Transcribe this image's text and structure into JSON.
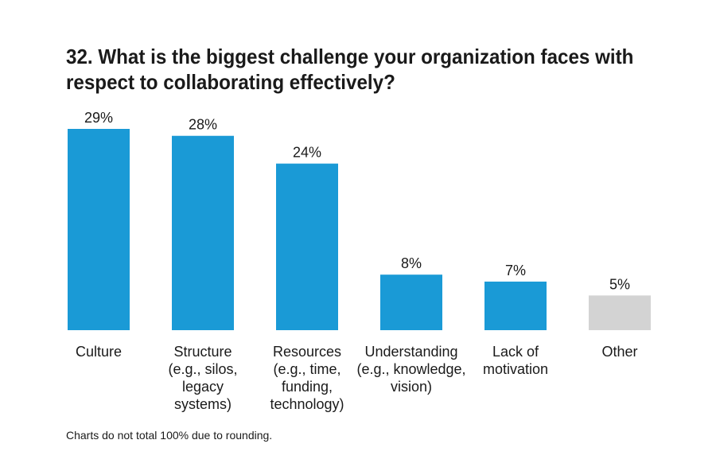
{
  "chart_data": {
    "type": "bar",
    "title": "32. What is the biggest challenge your organization faces with respect to collaborating effectively?",
    "categories": [
      [
        "Culture"
      ],
      [
        "Structure",
        "(e.g., silos,",
        "legacy",
        "systems)"
      ],
      [
        "Resources",
        "(e.g., time,",
        "funding,",
        "technology)"
      ],
      [
        "Understanding",
        "(e.g., knowledge,",
        "vision)"
      ],
      [
        "Lack of",
        "motivation"
      ],
      [
        "Other"
      ]
    ],
    "values": [
      29,
      28,
      24,
      8,
      7,
      5
    ],
    "value_labels": [
      "29%",
      "28%",
      "24%",
      "8%",
      "7%",
      "5%"
    ],
    "colors": [
      "#1a9ad6",
      "#1a9ad6",
      "#1a9ad6",
      "#1a9ad6",
      "#1a9ad6",
      "#d3d3d3"
    ],
    "ylim": [
      0,
      29
    ],
    "grid": false,
    "legend": "none",
    "footnote": "Charts do not total 100% due to rounding."
  }
}
